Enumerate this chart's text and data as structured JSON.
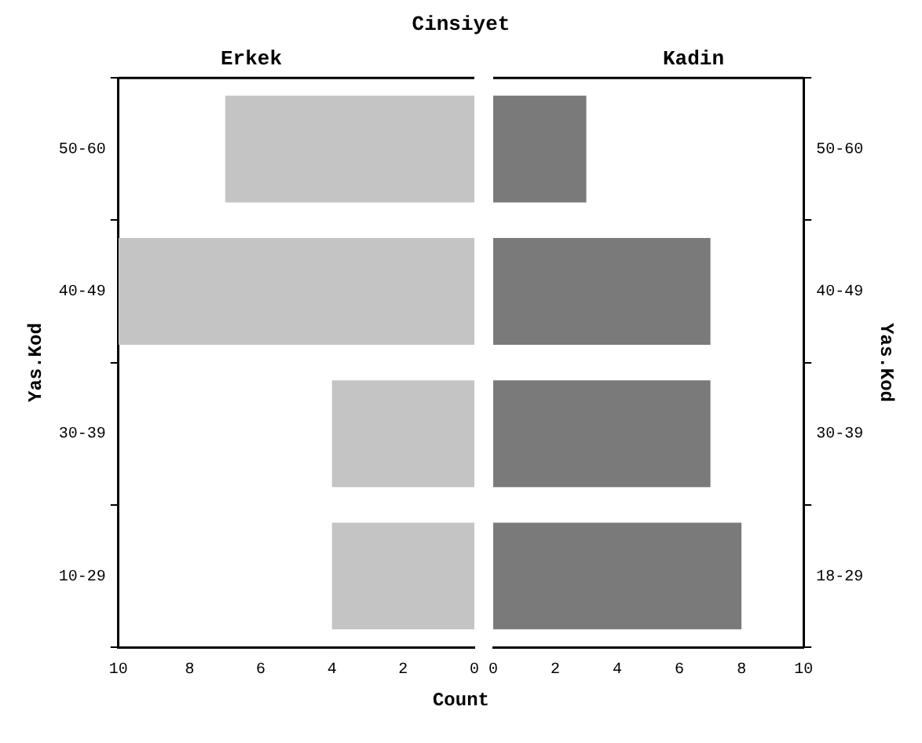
{
  "chart_data": [
    {
      "type": "bar",
      "orientation": "horizontal",
      "title": "Erkek",
      "annotations": [
        "Cinsiyet"
      ],
      "xlabel": "Count",
      "ylabel": "Yas.Kod",
      "categories": [
        "50-60",
        "40-49",
        "30-39",
        "10-29"
      ],
      "values": [
        7,
        10,
        4,
        4
      ],
      "color": "#c4c4c4",
      "xlim": [
        10,
        0
      ],
      "xticks": [
        10,
        8,
        6,
        4,
        2,
        0
      ],
      "grid": false
    },
    {
      "type": "bar",
      "orientation": "horizontal",
      "title": "Kadin",
      "ylabel": "Yas.Kod",
      "categories": [
        "50-60",
        "40-49",
        "30-39",
        "18-29"
      ],
      "values": [
        3,
        7,
        7,
        8
      ],
      "color": "#7a7a7a",
      "xlim": [
        0,
        10
      ],
      "xticks": [
        0,
        2,
        4,
        6,
        8,
        10
      ],
      "grid": false
    }
  ]
}
